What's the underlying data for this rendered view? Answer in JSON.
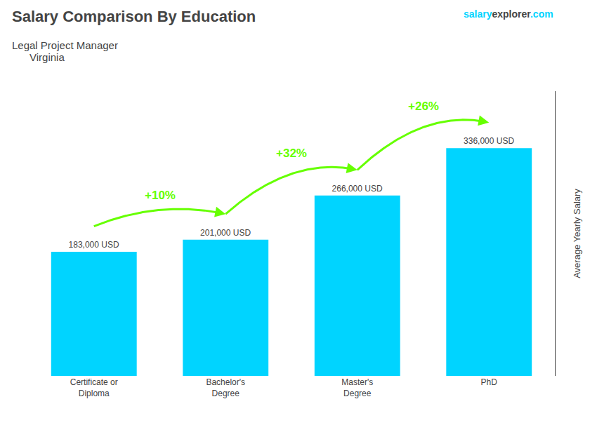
{
  "chart_data": {
    "type": "bar",
    "title": "Salary Comparison By Education",
    "subtitle": "Legal Project Manager",
    "location": "Virginia",
    "ylabel": "Average Yearly Salary",
    "categories": [
      "Certificate or\nDiploma",
      "Bachelor's\nDegree",
      "Master's\nDegree",
      "PhD"
    ],
    "values": [
      183000,
      201000,
      266000,
      336000
    ],
    "value_labels": [
      "183,000 USD",
      "201,000 USD",
      "266,000 USD",
      "336,000 USD"
    ],
    "data_labels": true,
    "color": "#00d4ff",
    "ylim": [
      0,
      420000
    ],
    "tick_labels": "x",
    "grid": false,
    "annotations": [
      {
        "text": "+10%",
        "from": 0,
        "to": 1,
        "color": "#66ff00"
      },
      {
        "text": "+32%",
        "from": 1,
        "to": 2,
        "color": "#66ff00"
      },
      {
        "text": "+26%",
        "from": 2,
        "to": 3,
        "color": "#66ff00"
      }
    ],
    "source": {
      "parts": [
        "salary",
        "explorer",
        ".com"
      ],
      "color": "#00d4ff"
    }
  }
}
